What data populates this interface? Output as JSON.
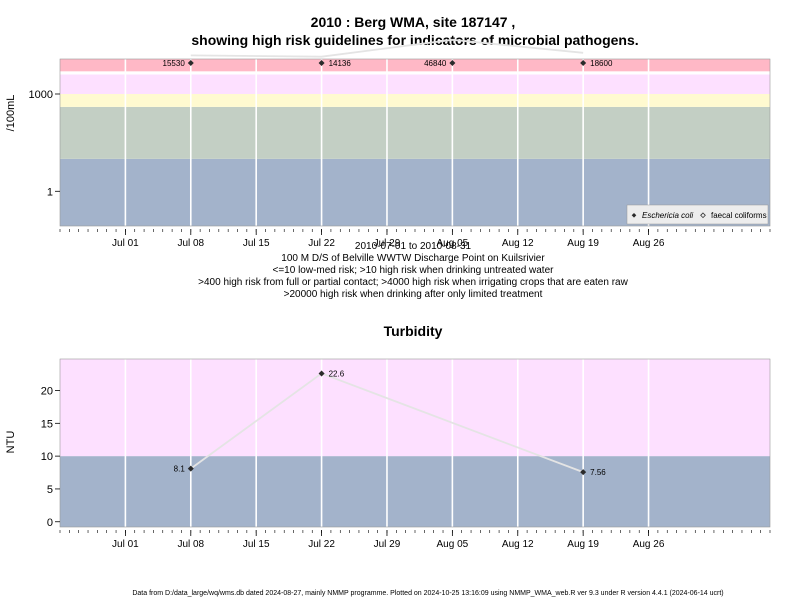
{
  "chart_data": [
    {
      "type": "line",
      "title": "2010 : Berg WMA, site 187147 ,",
      "title2": "showing high risk guidelines for indicators of microbial pathogens.",
      "ylabel": "/100mL",
      "yscale": "log",
      "ylim": [
        0.085,
        12000
      ],
      "yticks": [
        {
          "value": 1,
          "label": "1"
        },
        {
          "value": 1000,
          "label": "1000"
        }
      ],
      "x_range": [
        "2010-06-24",
        "2010-09-08"
      ],
      "xticks": [
        {
          "date": "2010-07-01",
          "label": "Jul 01"
        },
        {
          "date": "2010-07-08",
          "label": "Jul 08"
        },
        {
          "date": "2010-07-15",
          "label": "Jul 15"
        },
        {
          "date": "2010-07-22",
          "label": "Jul 22"
        },
        {
          "date": "2010-07-29",
          "label": "Jul 29"
        },
        {
          "date": "2010-08-05",
          "label": "Aug 05"
        },
        {
          "date": "2010-08-12",
          "label": "Aug 12"
        },
        {
          "date": "2010-08-19",
          "label": "Aug 19"
        },
        {
          "date": "2010-08-26",
          "label": "Aug 26"
        }
      ],
      "bands": [
        {
          "from": 0.085,
          "to": 10,
          "color": "#a3b3cb"
        },
        {
          "from": 10,
          "to": 400,
          "color": "#c3cfc4"
        },
        {
          "from": 400,
          "to": 1000,
          "color": "#fffad0"
        },
        {
          "from": 1000,
          "to": 4000,
          "color": "#fde0ff"
        },
        {
          "from": 4000,
          "to": 5000,
          "color": "#ffffff"
        },
        {
          "from": 5000,
          "to": 12000,
          "color": "#ffb8c6"
        }
      ],
      "series": [
        {
          "name": "Eschericia coli",
          "color": "#2b2b2b",
          "points": [
            {
              "x": "2010-07-08",
              "y": 15530,
              "label": "15530"
            },
            {
              "x": "2010-07-22",
              "y": 14136,
              "label": "14136"
            },
            {
              "x": "2010-08-05",
              "y": 46840,
              "label": "46840"
            },
            {
              "x": "2010-08-19",
              "y": 18600,
              "label": "18600"
            }
          ]
        }
      ],
      "legend": {
        "position": "bottom-right",
        "entries": [
          "Eschericia coli",
          "faecal coliforms"
        ]
      },
      "subtitle_lines": [
        "2010-07-01 to 2010-08-31",
        "100 M D/S of Belville WWTW Discharge Point on Kuilsrivier",
        "<=10 low-med risk; >10 high risk when drinking untreated water",
        ">400 high risk from full or partial contact; >4000 high risk when irrigating crops that are eaten raw",
        ">20000 high risk when drinking after only limited treatment"
      ]
    },
    {
      "type": "line",
      "title": "Turbidity",
      "ylabel": "NTU",
      "ylim": [
        -0.8,
        24.8
      ],
      "yticks": [
        {
          "value": 0,
          "label": "0"
        },
        {
          "value": 5,
          "label": "5"
        },
        {
          "value": 10,
          "label": "10"
        },
        {
          "value": 15,
          "label": "15"
        },
        {
          "value": 20,
          "label": "20"
        }
      ],
      "x_range": [
        "2010-06-24",
        "2010-09-08"
      ],
      "xticks": [
        {
          "date": "2010-07-01",
          "label": "Jul 01"
        },
        {
          "date": "2010-07-08",
          "label": "Jul 08"
        },
        {
          "date": "2010-07-15",
          "label": "Jul 15"
        },
        {
          "date": "2010-07-22",
          "label": "Jul 22"
        },
        {
          "date": "2010-07-29",
          "label": "Jul 29"
        },
        {
          "date": "2010-08-05",
          "label": "Aug 05"
        },
        {
          "date": "2010-08-12",
          "label": "Aug 12"
        },
        {
          "date": "2010-08-19",
          "label": "Aug 19"
        },
        {
          "date": "2010-08-26",
          "label": "Aug 26"
        }
      ],
      "bands": [
        {
          "from": -0.8,
          "to": 10,
          "color": "#a3b3cb"
        },
        {
          "from": 10,
          "to": 24.8,
          "color": "#fde0ff"
        }
      ],
      "series": [
        {
          "color": "#2b2b2b",
          "points": [
            {
              "x": "2010-07-08",
              "y": 8.1,
              "label": "8.1"
            },
            {
              "x": "2010-07-22",
              "y": 22.6,
              "label": "22.6"
            },
            {
              "x": "2010-08-19",
              "y": 7.56,
              "label": "7.56"
            }
          ]
        }
      ]
    }
  ],
  "footer": "Data from D:/data_large/wq/wms.db dated 2024-08-27, mainly NMMP programme. Plotted on 2024-10-25 13:16:09 using NMMP_WMA_web.R ver 9.3 under R version 4.4.1 (2024-06-14 ucrt)"
}
